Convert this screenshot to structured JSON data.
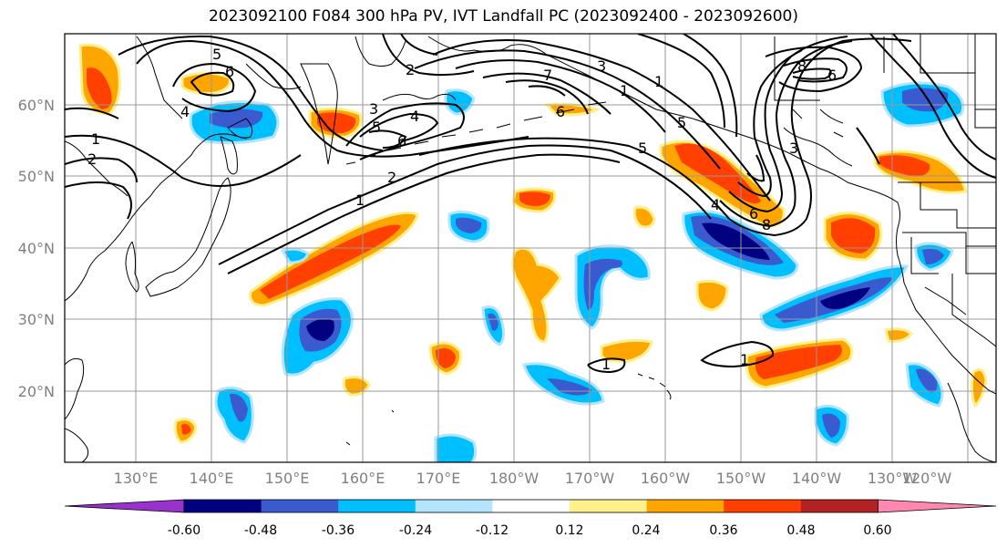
{
  "title": "2023092100 F084 300 hPa PV, IVT Landfall PC (2023092400 - 2023092600)",
  "lat_labels": [
    "60°N",
    "50°N",
    "40°N",
    "30°N",
    "20°N"
  ],
  "lon_labels": [
    "130°E",
    "140°E",
    "150°E",
    "160°E",
    "170°E",
    "180°W",
    "170°W",
    "160°W",
    "150°W",
    "140°W",
    "130°W",
    "120°W"
  ],
  "colorbar": {
    "colors": [
      "#9932cc",
      "#000080",
      "#3a5bd0",
      "#00bfff",
      "#b3e5ff",
      "#ffffff",
      "#fff08a",
      "#ffa500",
      "#ff4000",
      "#b22222",
      "#ff88b0"
    ],
    "tick_labels": [
      "-0.60",
      "-0.48",
      "-0.36",
      "-0.24",
      "-0.12",
      "0.12",
      "0.24",
      "0.36",
      "0.48",
      "0.60"
    ]
  },
  "contour_labels": [
    "5",
    "6",
    "4",
    "1",
    "2",
    "3",
    "4",
    "5",
    "6",
    "2",
    "1",
    "2",
    "5",
    "6",
    "7",
    "3",
    "1",
    "8",
    "6",
    "4",
    "5",
    "3",
    "8",
    "6",
    "1",
    "1",
    "1"
  ]
}
